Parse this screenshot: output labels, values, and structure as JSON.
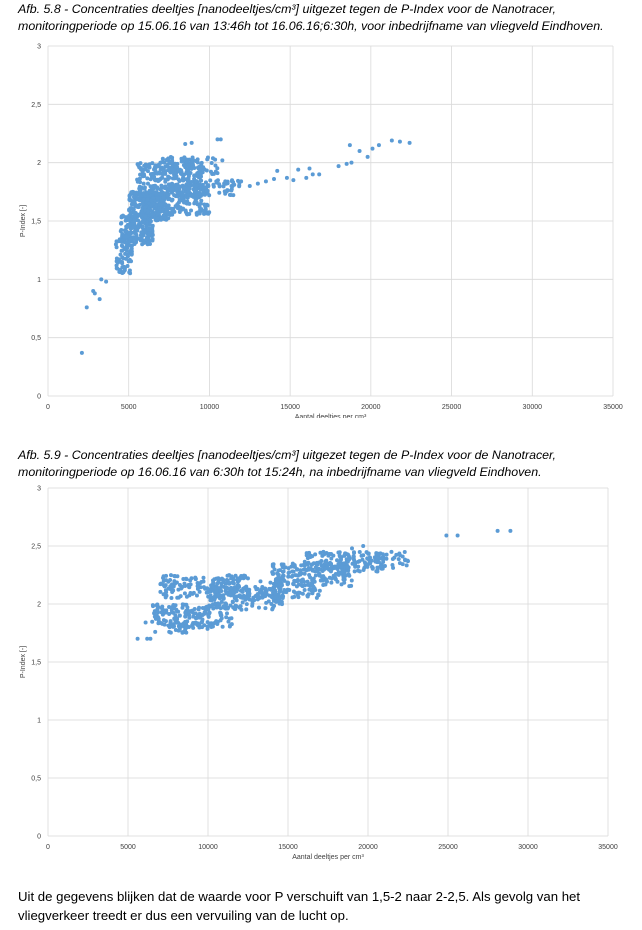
{
  "captions": [
    {
      "line1": "Afb. 5.8 - Concentraties deeltjes [nanodeeltjes/cm³] uitgezet tegen de P-Index voor de Nanotracer,",
      "line2": "monitoringperiode op 15.06.16 van 13:46h tot 16.06.16;6:30h, voor inbedrijfname van vliegveld Eindhoven."
    },
    {
      "line1": "Afb. 5.9 - Concentraties deeltjes [nanodeeltjes/cm³] uitgezet tegen de P-Index voor de Nanotracer,",
      "line2": "monitoringperiode op 16.06.16 van 6:30h tot 15:24h, na inbedrijfname van vliegveld Eindhoven."
    }
  ],
  "conclusion": {
    "line1": "Uit de gegevens blijken dat de waarde voor P verschuift van 1,5-2 naar 2-2,5. Als gevolg van het",
    "line2": "vliegverkeer treedt er dus een vervuiling van de lucht op."
  },
  "chart_data": [
    {
      "type": "scatter",
      "title": "",
      "xlabel": "Aantal deeltjes per cm³",
      "ylabel": "P-Index [-]",
      "xlim": [
        0,
        35000
      ],
      "ylim": [
        0,
        3
      ],
      "x_ticks": [
        "0",
        "5000",
        "10000",
        "15000",
        "20000",
        "25000",
        "30000",
        "35000"
      ],
      "y_ticks": [
        "0",
        "0,5",
        "1",
        "1,5",
        "2",
        "2,5",
        "3"
      ],
      "grid": true,
      "legend": "none",
      "point_color": "#5B9BD5",
      "cloud": [
        {
          "x": [
            4200,
            5200
          ],
          "y": [
            1.05,
            1.35
          ],
          "n": 70
        },
        {
          "x": [
            4500,
            6500
          ],
          "y": [
            1.3,
            1.55
          ],
          "n": 180
        },
        {
          "x": [
            5000,
            7500
          ],
          "y": [
            1.5,
            1.75
          ],
          "n": 260
        },
        {
          "x": [
            5500,
            9500
          ],
          "y": [
            1.7,
            2.0
          ],
          "n": 260
        },
        {
          "x": [
            6000,
            10000
          ],
          "y": [
            1.55,
            1.8
          ],
          "n": 160
        },
        {
          "x": [
            9000,
            12000
          ],
          "y": [
            1.72,
            1.85
          ],
          "n": 60
        },
        {
          "x": [
            7000,
            10500
          ],
          "y": [
            1.9,
            2.05
          ],
          "n": 80
        }
      ],
      "points": [
        {
          "x": 2100,
          "y": 0.37
        },
        {
          "x": 2400,
          "y": 0.76
        },
        {
          "x": 2800,
          "y": 0.9
        },
        {
          "x": 2900,
          "y": 0.88
        },
        {
          "x": 3200,
          "y": 0.83
        },
        {
          "x": 3600,
          "y": 0.98
        },
        {
          "x": 3300,
          "y": 1.0
        },
        {
          "x": 10700,
          "y": 2.2
        },
        {
          "x": 10500,
          "y": 2.2
        },
        {
          "x": 8500,
          "y": 2.16
        },
        {
          "x": 8900,
          "y": 2.17
        },
        {
          "x": 10800,
          "y": 2.02
        },
        {
          "x": 12500,
          "y": 1.8
        },
        {
          "x": 13000,
          "y": 1.82
        },
        {
          "x": 13500,
          "y": 1.84
        },
        {
          "x": 14000,
          "y": 1.86
        },
        {
          "x": 14200,
          "y": 1.93
        },
        {
          "x": 14800,
          "y": 1.87
        },
        {
          "x": 15200,
          "y": 1.85
        },
        {
          "x": 15500,
          "y": 1.94
        },
        {
          "x": 16200,
          "y": 1.95
        },
        {
          "x": 16400,
          "y": 1.9
        },
        {
          "x": 16800,
          "y": 1.9
        },
        {
          "x": 16000,
          "y": 1.87
        },
        {
          "x": 18000,
          "y": 1.97
        },
        {
          "x": 18500,
          "y": 1.99
        },
        {
          "x": 18800,
          "y": 2.0
        },
        {
          "x": 18700,
          "y": 2.15
        },
        {
          "x": 19300,
          "y": 2.1
        },
        {
          "x": 19800,
          "y": 2.05
        },
        {
          "x": 20100,
          "y": 2.12
        },
        {
          "x": 20500,
          "y": 2.15
        },
        {
          "x": 21300,
          "y": 2.19
        },
        {
          "x": 21800,
          "y": 2.18
        },
        {
          "x": 22400,
          "y": 2.17
        }
      ]
    },
    {
      "type": "scatter",
      "title": "",
      "xlabel": "Aantal deeltjes per cm³",
      "ylabel": "P-Index [-]",
      "xlim": [
        0,
        35000
      ],
      "ylim": [
        0,
        3
      ],
      "x_ticks": [
        "0",
        "5000",
        "10000",
        "15000",
        "20000",
        "25000",
        "30000",
        "35000"
      ],
      "y_ticks": [
        "0",
        "0,5",
        "1",
        "1,5",
        "2",
        "2,5",
        "3"
      ],
      "grid": true,
      "legend": "none",
      "point_color": "#5B9BD5",
      "cloud": [
        {
          "x": [
            6500,
            11500
          ],
          "y": [
            1.8,
            2.0
          ],
          "n": 170
        },
        {
          "x": [
            7000,
            12500
          ],
          "y": [
            2.05,
            2.25
          ],
          "n": 170
        },
        {
          "x": [
            10000,
            15000
          ],
          "y": [
            1.95,
            2.15
          ],
          "n": 150
        },
        {
          "x": [
            14000,
            19000
          ],
          "y": [
            2.15,
            2.35
          ],
          "n": 180
        },
        {
          "x": [
            16000,
            21000
          ],
          "y": [
            2.28,
            2.45
          ],
          "n": 150
        },
        {
          "x": [
            13000,
            17000
          ],
          "y": [
            2.05,
            2.2
          ],
          "n": 80
        },
        {
          "x": [
            20500,
            22500
          ],
          "y": [
            2.3,
            2.45
          ],
          "n": 30
        },
        {
          "x": [
            7500,
            10000
          ],
          "y": [
            1.75,
            1.85
          ],
          "n": 30
        }
      ],
      "points": [
        {
          "x": 5600,
          "y": 1.7
        },
        {
          "x": 6200,
          "y": 1.7
        },
        {
          "x": 6400,
          "y": 1.7
        },
        {
          "x": 6100,
          "y": 1.84
        },
        {
          "x": 6700,
          "y": 1.76
        },
        {
          "x": 22500,
          "y": 2.37
        },
        {
          "x": 22000,
          "y": 2.42
        },
        {
          "x": 24900,
          "y": 2.59
        },
        {
          "x": 25600,
          "y": 2.59
        },
        {
          "x": 28100,
          "y": 2.63
        },
        {
          "x": 28900,
          "y": 2.63
        },
        {
          "x": 19000,
          "y": 2.48
        },
        {
          "x": 19700,
          "y": 2.5
        }
      ]
    }
  ]
}
